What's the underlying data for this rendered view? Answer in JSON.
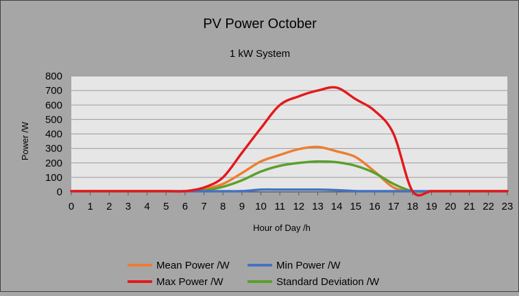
{
  "chart_data": {
    "type": "line",
    "title": "PV Power October",
    "subtitle": "1 kW System",
    "xlabel": "Hour of Day /h",
    "ylabel": "Power /W",
    "xlim": [
      0,
      23
    ],
    "ylim": [
      0,
      800
    ],
    "x_ticks": [
      0,
      1,
      2,
      3,
      4,
      5,
      6,
      7,
      8,
      9,
      10,
      11,
      12,
      13,
      14,
      15,
      16,
      17,
      18,
      19,
      20,
      21,
      22,
      23
    ],
    "y_ticks": [
      0,
      100,
      200,
      300,
      400,
      500,
      600,
      700,
      800
    ],
    "grid": true,
    "legend_position": "bottom",
    "x": [
      0,
      1,
      2,
      3,
      4,
      5,
      6,
      7,
      8,
      9,
      10,
      11,
      12,
      13,
      14,
      15,
      16,
      17,
      18,
      19,
      20,
      21,
      22,
      23
    ],
    "series": [
      {
        "name": "Mean Power /W",
        "color": "#ed7d31",
        "values": [
          0,
          0,
          0,
          0,
          0,
          0,
          0,
          20,
          55,
          130,
          210,
          255,
          295,
          310,
          280,
          240,
          140,
          30,
          0,
          0,
          0,
          0,
          0,
          0
        ]
      },
      {
        "name": "Min Power /W",
        "color": "#4472c4",
        "values": [
          0,
          0,
          0,
          0,
          0,
          0,
          0,
          0,
          0,
          5,
          15,
          15,
          15,
          15,
          12,
          5,
          0,
          0,
          0,
          0,
          0,
          0,
          0,
          0
        ]
      },
      {
        "name": "Max Power /W",
        "color": "#e31a1c",
        "values": [
          0,
          0,
          0,
          0,
          0,
          0,
          0,
          30,
          100,
          270,
          440,
          600,
          660,
          700,
          720,
          640,
          560,
          400,
          0,
          0,
          0,
          0,
          0,
          0
        ]
      },
      {
        "name": "Standard Deviation /W",
        "color": "#5aa02c",
        "values": [
          0,
          0,
          0,
          0,
          0,
          0,
          0,
          10,
          35,
          80,
          140,
          180,
          200,
          210,
          205,
          180,
          130,
          55,
          0,
          0,
          0,
          0,
          0,
          0
        ]
      }
    ]
  }
}
